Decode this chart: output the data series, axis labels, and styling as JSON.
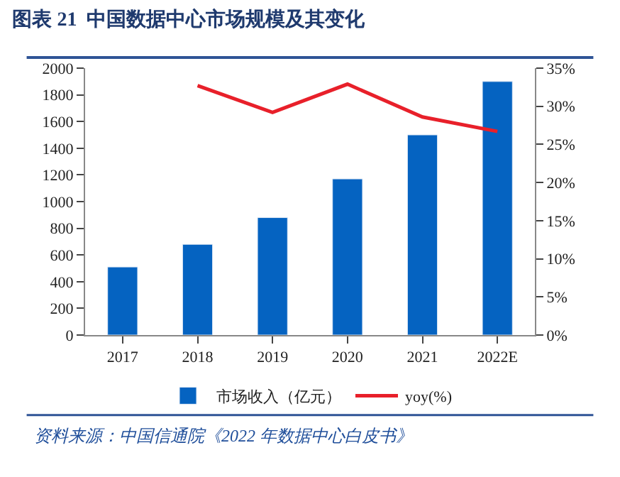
{
  "chart_data": {
    "type": "bar",
    "title": "图表 21  中国数据中心市场规模及其变化",
    "categories": [
      "2017",
      "2018",
      "2019",
      "2020",
      "2021",
      "2022E"
    ],
    "series": [
      {
        "name": "市场收入（亿元）",
        "color": "#0563c1",
        "values": [
          510,
          680,
          880,
          1170,
          1500,
          1900
        ]
      },
      {
        "name": "yoy(%)",
        "type": "line",
        "axis": "y2",
        "color": "#e8202a",
        "values": [
          null,
          32.7,
          29.2,
          32.9,
          28.6,
          26.7
        ]
      }
    ],
    "ylim": [
      0,
      2000
    ],
    "yticks": [
      0,
      200,
      400,
      600,
      800,
      1000,
      1200,
      1400,
      1600,
      1800,
      2000
    ],
    "y2lim": [
      0,
      35
    ],
    "y2ticks": [
      {
        "value": 0,
        "label": "0%"
      },
      {
        "value": 5,
        "label": "5%"
      },
      {
        "value": 10,
        "label": "10%"
      },
      {
        "value": 15,
        "label": "15%"
      },
      {
        "value": 20,
        "label": "20%"
      },
      {
        "value": 25,
        "label": "25%"
      },
      {
        "value": 30,
        "label": "30%"
      },
      {
        "value": 35,
        "label": "35%"
      }
    ],
    "legend": "bottom",
    "marker": "none",
    "annotations": [
      "资料来源：中国信通院《2022 年数据中心白皮书》"
    ]
  }
}
